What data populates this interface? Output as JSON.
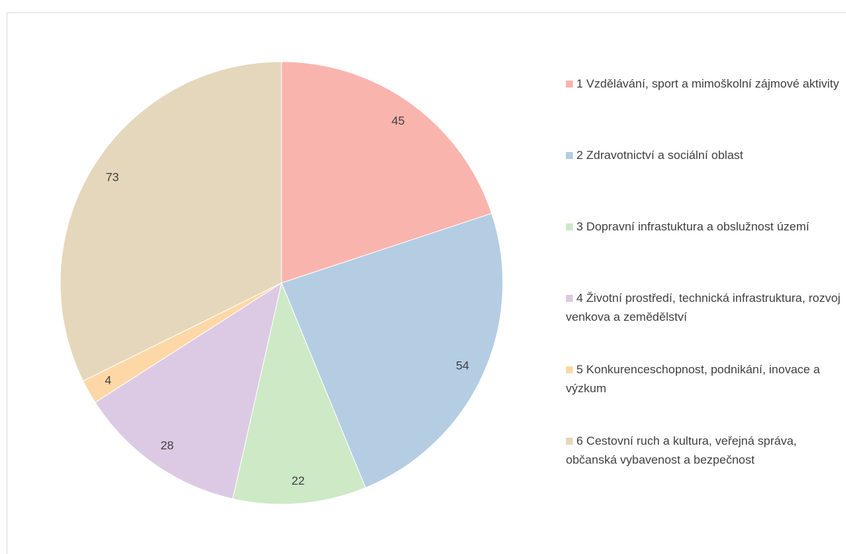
{
  "chart_data": {
    "type": "pie",
    "categories": [
      "1 Vzdělávání, sport a mimoškolní zájmové aktivity",
      "2 Zdravotnictví a sociální oblast",
      "3 Dopravní infrastuktura a obslužnost území",
      "4 Životní prostředí, technická infrastruktura, rozvoj venkova a zemědělství",
      "5 Konkurenceschopnost, podnikání, inovace a výzkum",
      "6 Cestovní ruch a kultura, veřejná správa, občanská vybavenost a bezpečnost"
    ],
    "values": [
      45,
      54,
      22,
      28,
      4,
      73
    ],
    "colors": [
      "#f9b4ad",
      "#b4cde3",
      "#cde9c5",
      "#dccae4",
      "#fdd8a6",
      "#e5d7bb"
    ],
    "legend": "right"
  }
}
